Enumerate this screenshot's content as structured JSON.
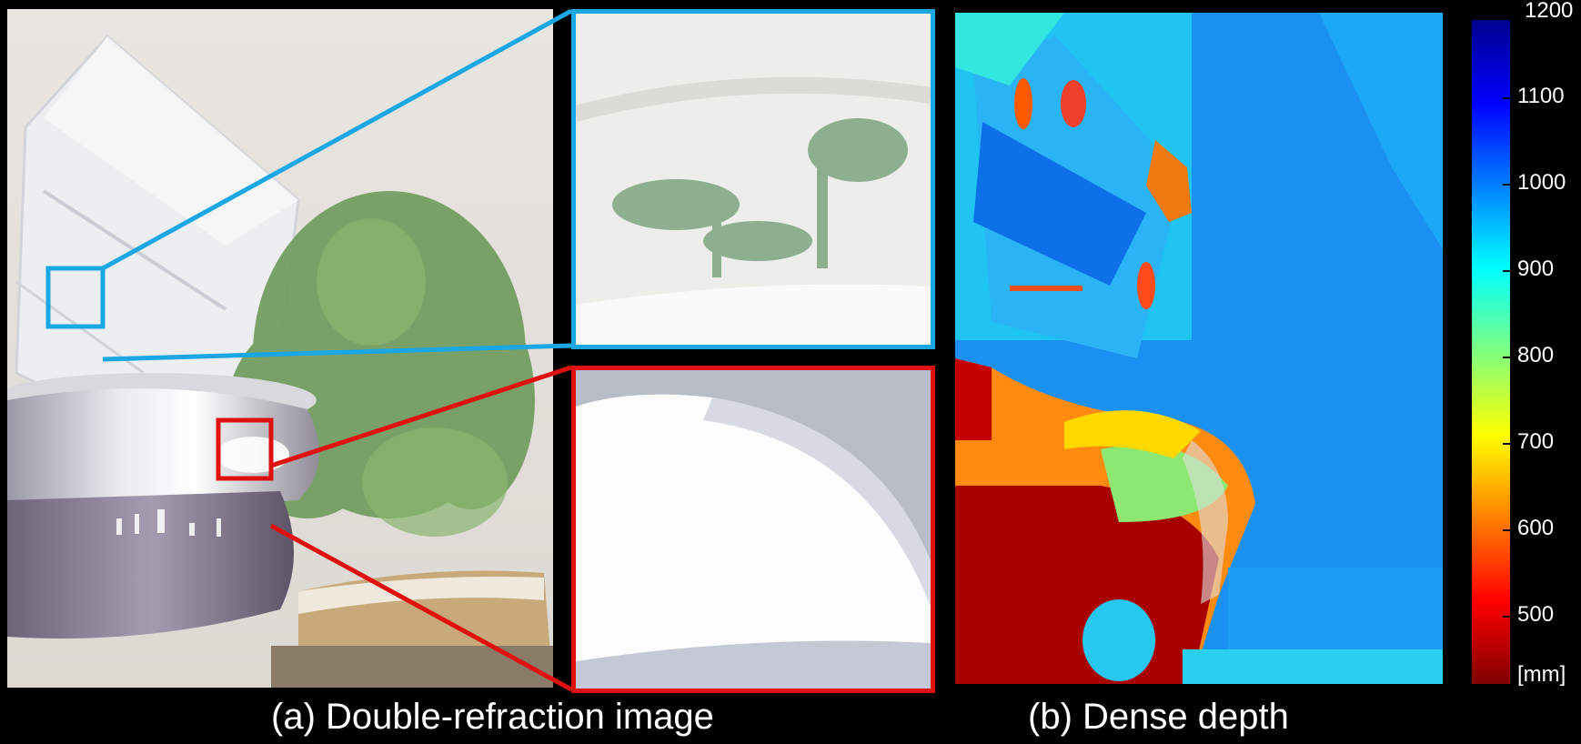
{
  "panels": {
    "left_caption": "(a) Double-refraction image",
    "right_caption": "(b) Dense depth"
  },
  "colorbar": {
    "ticks": [
      "1200",
      "1100",
      "1000",
      "900",
      "800",
      "700",
      "600",
      "500"
    ],
    "tick_values": [
      1200,
      1100,
      1000,
      900,
      800,
      700,
      600,
      500
    ],
    "unit": "[mm]",
    "range": [
      450,
      1200
    ],
    "colormap": "jet"
  },
  "colors": {
    "background": "#000000",
    "zoom_top_border": "#1aa7e4",
    "zoom_bottom_border": "#e01010"
  }
}
